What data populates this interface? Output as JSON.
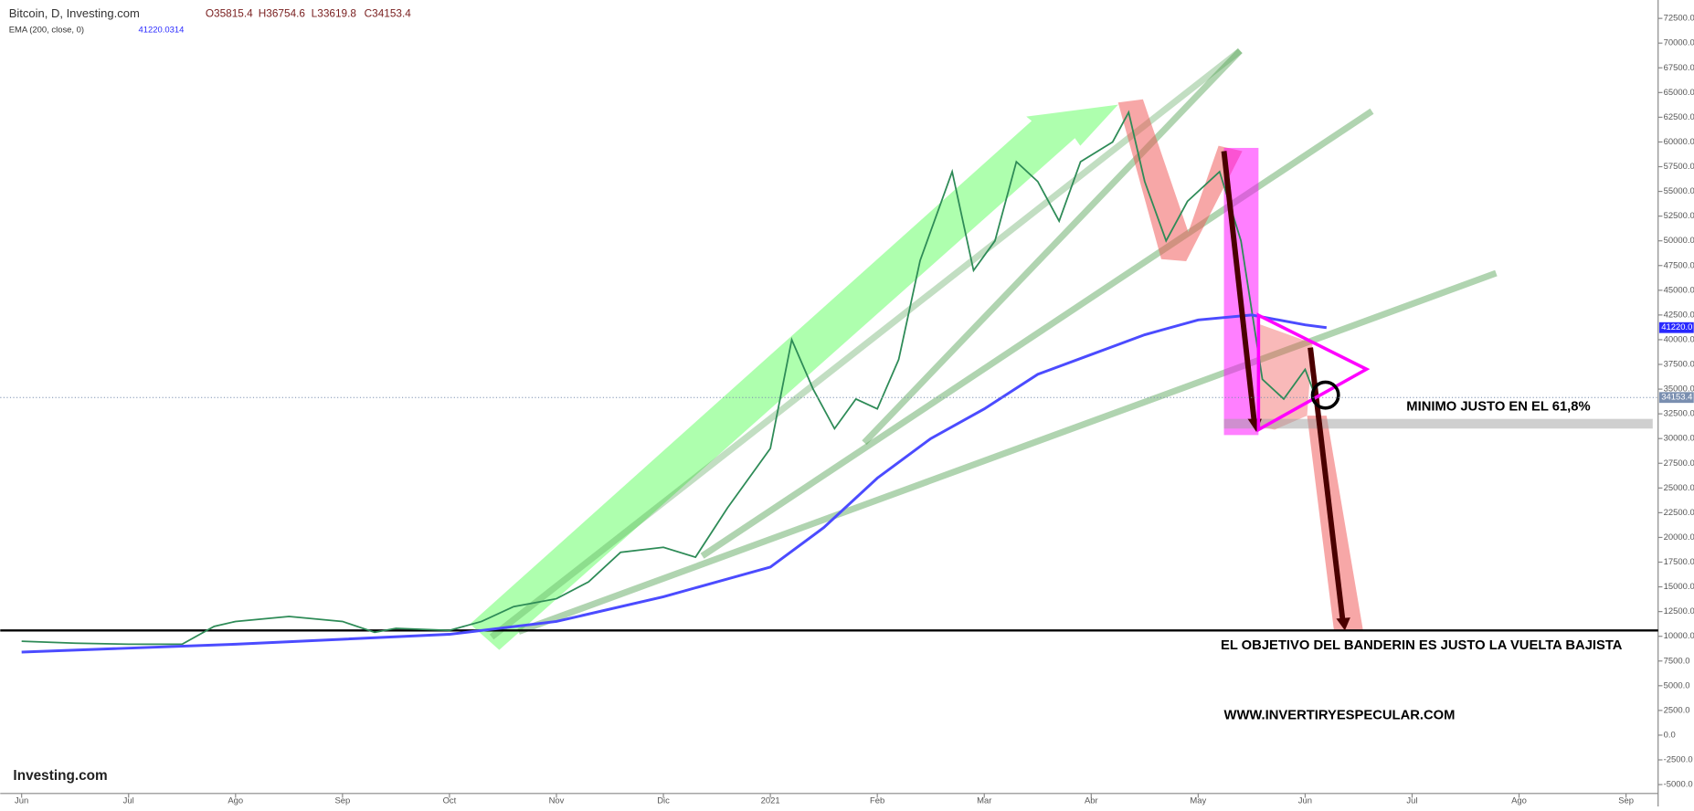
{
  "header": {
    "title": "Bitcoin, D, Investing.com",
    "open": "O35815.4",
    "high": "H36754.6",
    "low": "L33619.8",
    "close": "C34153.4",
    "indicator": "EMA (200, close, 0)",
    "indicator_value": "41220.0314"
  },
  "chart_data": {
    "type": "line",
    "xlim": [
      -0.2,
      15.3
    ],
    "xticks": [
      {
        "value": 0,
        "label": "Jun"
      },
      {
        "value": 1,
        "label": "Jul"
      },
      {
        "value": 2,
        "label": "Ago"
      },
      {
        "value": 3,
        "label": "Sep"
      },
      {
        "value": 4,
        "label": "Oct"
      },
      {
        "value": 5,
        "label": "Nov"
      },
      {
        "value": 6,
        "label": "Dic"
      },
      {
        "value": 7,
        "label": "2021"
      },
      {
        "value": 8,
        "label": "Feb"
      },
      {
        "value": 9,
        "label": "Mar"
      },
      {
        "value": 10,
        "label": "Abr"
      },
      {
        "value": 11,
        "label": "May"
      },
      {
        "value": 12,
        "label": "Jun"
      },
      {
        "value": 13,
        "label": "Jul"
      },
      {
        "value": 14,
        "label": "Ago"
      },
      {
        "value": 15,
        "label": "Sep"
      }
    ],
    "ylim": [
      -5900,
      74360
    ],
    "yticks": [
      {
        "value": -5000,
        "label": "-5000.0"
      },
      {
        "value": -2500,
        "label": "-2500.0"
      },
      {
        "value": 0,
        "label": "0.0"
      },
      {
        "value": 2500,
        "label": "2500.0"
      },
      {
        "value": 5000,
        "label": "5000.0"
      },
      {
        "value": 7500,
        "label": "7500.0"
      },
      {
        "value": 10000,
        "label": "10000.0"
      },
      {
        "value": 12500,
        "label": "12500.0"
      },
      {
        "value": 15000,
        "label": "15000.0"
      },
      {
        "value": 17500,
        "label": "17500.0"
      },
      {
        "value": 20000,
        "label": "20000.0"
      },
      {
        "value": 22500,
        "label": "22500.0"
      },
      {
        "value": 25000,
        "label": "25000.0"
      },
      {
        "value": 27500,
        "label": "27500.0"
      },
      {
        "value": 30000,
        "label": "30000.0"
      },
      {
        "value": 32500,
        "label": "32500.0"
      },
      {
        "value": 35000,
        "label": "35000.0"
      },
      {
        "value": 37500,
        "label": "37500.0"
      },
      {
        "value": 40000,
        "label": "40000.0"
      },
      {
        "value": 42500,
        "label": "42500.0"
      },
      {
        "value": 45000,
        "label": "45000.0"
      },
      {
        "value": 47500,
        "label": "47500.0"
      },
      {
        "value": 50000,
        "label": "50000.0"
      },
      {
        "value": 52500,
        "label": "52500.0"
      },
      {
        "value": 55000,
        "label": "55000.0"
      },
      {
        "value": 57500,
        "label": "57500.0"
      },
      {
        "value": 60000,
        "label": "60000.0"
      },
      {
        "value": 62500,
        "label": "62500.0"
      },
      {
        "value": 65000,
        "label": "65000.0"
      },
      {
        "value": 67500,
        "label": "67500.0"
      },
      {
        "value": 70000,
        "label": "70000.0"
      },
      {
        "value": 72500,
        "label": "72500.0"
      }
    ],
    "series": [
      {
        "color": "#2e8b57",
        "x": [
          0,
          0.5,
          1,
          1.5,
          1.8,
          2,
          2.5,
          3,
          3.3,
          3.5,
          4,
          4.3,
          4.6,
          5,
          5.3,
          5.6,
          6,
          6.3,
          6.6,
          7,
          7.2,
          7.4,
          7.6,
          7.8,
          8,
          8.2,
          8.4,
          8.7,
          8.9,
          9.1,
          9.3,
          9.5,
          9.7,
          9.9,
          10.2,
          10.35,
          10.5,
          10.7,
          10.9,
          11.2,
          11.4,
          11.6,
          11.8,
          12,
          12.1
        ],
        "values": [
          9500,
          9300,
          9200,
          9200,
          11000,
          11500,
          12000,
          11500,
          10400,
          10800,
          10600,
          11500,
          13000,
          13800,
          15500,
          18500,
          19000,
          18000,
          23000,
          29000,
          40000,
          35000,
          31000,
          34000,
          33000,
          38000,
          48000,
          57000,
          47000,
          50000,
          58000,
          56000,
          52000,
          58000,
          60000,
          63000,
          56000,
          50000,
          54000,
          57000,
          50000,
          36000,
          34000,
          37000,
          34153.4
        ]
      },
      {
        "color": "#4b4bff",
        "x": [
          0,
          2,
          4,
          5,
          6,
          7,
          7.5,
          8,
          8.5,
          9,
          9.5,
          10,
          10.5,
          11,
          11.5,
          12,
          12.2
        ],
        "values": [
          8400,
          9200,
          10200,
          11500,
          14000,
          17000,
          21000,
          26000,
          30000,
          33000,
          36500,
          38500,
          40500,
          42000,
          42500,
          41500,
          41220
        ]
      }
    ],
    "price_tags": [
      {
        "value": 41220.0,
        "label": "41220.0",
        "color": "#2929ff"
      },
      {
        "value": 34153.4,
        "label": "34153.4",
        "color": "#7a8fb0"
      }
    ],
    "annotations": [
      "MINIMO JUSTO EN EL 61,8%",
      "EL OBJETIVO DEL BANDERIN ES JUSTO LA VUELTA BAJISTA",
      "WWW.INVERTIRYESPECULAR.COM"
    ],
    "logo": "Investing.com"
  }
}
